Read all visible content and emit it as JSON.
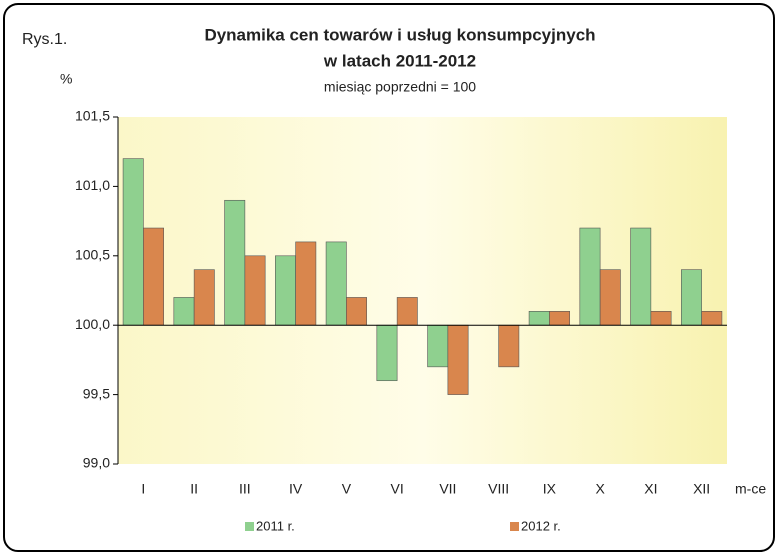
{
  "chart_data": {
    "type": "bar",
    "figure_label": "Rys.1.",
    "title": [
      "Dynamika cen towarów i usług konsumpcyjnych",
      "w latach 2011-2012"
    ],
    "subtitle": "miesiąc poprzedni = 100",
    "y_label": "%",
    "x_label": "m-ce",
    "categories": [
      "I",
      "II",
      "III",
      "IV",
      "V",
      "VI",
      "VII",
      "VIII",
      "IX",
      "X",
      "XI",
      "XII"
    ],
    "series": [
      {
        "name": "2011 r.",
        "color": "#8fd08f",
        "values": [
          101.2,
          100.2,
          100.9,
          100.5,
          100.6,
          99.6,
          99.7,
          100.0,
          100.1,
          100.7,
          100.7,
          100.4
        ]
      },
      {
        "name": "2012 r.",
        "color": "#d9864d",
        "values": [
          100.7,
          100.4,
          100.5,
          100.6,
          100.2,
          100.2,
          99.5,
          99.7,
          100.1,
          100.4,
          100.1,
          100.1
        ]
      }
    ],
    "base": 100,
    "ylim": [
      99.0,
      101.5
    ],
    "yticks": [
      {
        "value": 99.0,
        "label": "99,0"
      },
      {
        "value": 99.5,
        "label": "99,5"
      },
      {
        "value": 100.0,
        "label": "100,0"
      },
      {
        "value": 100.5,
        "label": "100,5"
      },
      {
        "value": 101.0,
        "label": "101,0"
      },
      {
        "value": 101.5,
        "label": "101,5"
      }
    ],
    "grid": false,
    "legend": "bottom"
  }
}
